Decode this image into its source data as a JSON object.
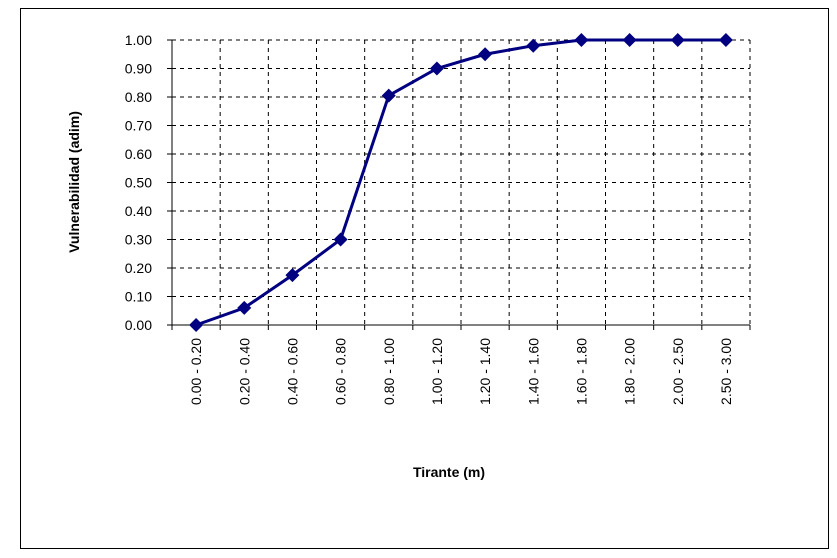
{
  "chart_data": {
    "type": "line",
    "xlabel": "Tirante (m)",
    "ylabel": "Vulnerabilidad (adim)",
    "categories": [
      "0.00 - 0.20",
      "0.20 - 0.40",
      "0.40 - 0.60",
      "0.60 - 0.80",
      "0.80 - 1.00",
      "1.00 - 1.20",
      "1.20 - 1.40",
      "1.40 - 1.60",
      "1.60 - 1.80",
      "1.80 - 2.00",
      "2.00 - 2.50",
      "2.50 - 3.00"
    ],
    "values": [
      0,
      0.06,
      0.175,
      0.3,
      0.805,
      0.9,
      0.95,
      0.98,
      1.0,
      1.0,
      1.0,
      1.0
    ],
    "color": "#000080",
    "ylim": [
      0,
      1
    ],
    "yticks": [
      {
        "value": 0,
        "label": "0.00"
      },
      {
        "value": 0.1,
        "label": "0.10"
      },
      {
        "value": 0.2,
        "label": "0.20"
      },
      {
        "value": 0.3,
        "label": "0.30"
      },
      {
        "value": 0.4,
        "label": "0.40"
      },
      {
        "value": 0.5,
        "label": "0.50"
      },
      {
        "value": 0.6,
        "label": "0.60"
      },
      {
        "value": 0.7,
        "label": "0.70"
      },
      {
        "value": 0.8,
        "label": "0.80"
      },
      {
        "value": 0.9,
        "label": "0.90"
      },
      {
        "value": 1,
        "label": "1.00"
      }
    ],
    "grid": true
  }
}
